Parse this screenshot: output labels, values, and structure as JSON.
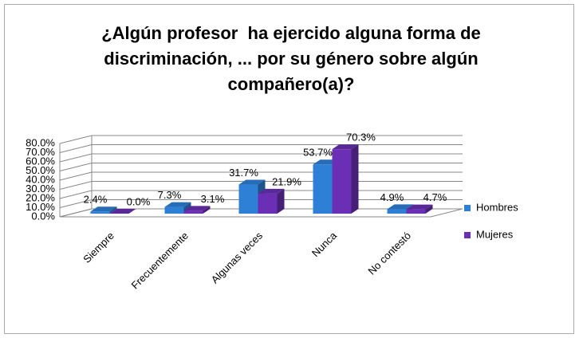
{
  "chart_data": {
    "type": "bar3d",
    "title": "¿Algún profesor  ha ejercido alguna forma de discriminación, ... por su género sobre algún compañero(a)?",
    "categories": [
      "Siempre",
      "Frecuentemente",
      "Algunas veces",
      "Nunca",
      "No contestó"
    ],
    "series": [
      {
        "name": "Hombres",
        "color": "#2e7fd6",
        "values": [
          2.4,
          7.3,
          31.7,
          53.7,
          4.9
        ],
        "value_labels": [
          "2.4%",
          "7.3%",
          "31.7%",
          "53.7%",
          "4.9%"
        ]
      },
      {
        "name": "Mujeres",
        "color": "#6b2fb5",
        "values": [
          0.0,
          3.1,
          21.9,
          70.3,
          4.7
        ],
        "value_labels": [
          "0.0%",
          "3.1%",
          "21.9%",
          "70.3%",
          "4.7%"
        ]
      }
    ],
    "ylim": [
      0,
      80
    ],
    "yticks": [
      {
        "value": 0,
        "label": "0.0%"
      },
      {
        "value": 10,
        "label": "10.0%"
      },
      {
        "value": 20,
        "label": "20.0%"
      },
      {
        "value": 30,
        "label": "30.0%"
      },
      {
        "value": 40,
        "label": "40.0%"
      },
      {
        "value": 50,
        "label": "50.0%"
      },
      {
        "value": 60,
        "label": "60.0%"
      },
      {
        "value": 70,
        "label": "70.0%"
      },
      {
        "value": 80,
        "label": "80.0%"
      }
    ],
    "grid": true,
    "legend": "right"
  }
}
